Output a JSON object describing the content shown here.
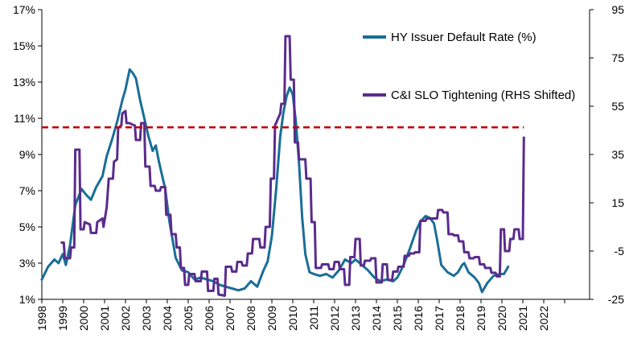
{
  "chart_data": {
    "type": "line",
    "title": "",
    "xlabel": "",
    "ylabel": "",
    "x_tick_labels": [
      "1998",
      "1999",
      "2000",
      "2001",
      "2002",
      "2003",
      "2004",
      "2005",
      "2006",
      "2007",
      "2008",
      "2009",
      "2010",
      "2011",
      "2012",
      "2013",
      "2014",
      "2015",
      "2016",
      "2017",
      "2018",
      "2019",
      "2020",
      "2021",
      "2022"
    ],
    "xlim": [
      1998,
      2023
    ],
    "y_left": {
      "ticks": [
        "1%",
        "3%",
        "5%",
        "7%",
        "9%",
        "11%",
        "13%",
        "15%",
        "17%"
      ],
      "range": [
        1,
        17
      ]
    },
    "y_right": {
      "ticks": [
        "-25",
        "-5",
        "15",
        "35",
        "55",
        "75",
        "95"
      ],
      "range": [
        -25,
        95
      ]
    },
    "grid": false,
    "legend_position": "top-right",
    "colors": {
      "series1": "#1a6e96",
      "series2": "#5b2c8c",
      "reference": "#c00000",
      "axis": "#000000"
    },
    "reference_line": {
      "axis": "left",
      "y": 10.5,
      "style": "dashed"
    },
    "series": [
      {
        "name": "HY Issuer Default Rate (%)",
        "axis": "left",
        "points": [
          [
            1998.0,
            2.1
          ],
          [
            1998.3,
            2.8
          ],
          [
            1998.6,
            3.2
          ],
          [
            1998.8,
            3.0
          ],
          [
            1999.0,
            3.5
          ],
          [
            1999.15,
            2.9
          ],
          [
            1999.35,
            4.0
          ],
          [
            1999.6,
            6.2
          ],
          [
            1999.9,
            7.1
          ],
          [
            2000.1,
            6.8
          ],
          [
            2000.35,
            6.5
          ],
          [
            2000.6,
            7.2
          ],
          [
            2000.9,
            7.8
          ],
          [
            2001.1,
            8.9
          ],
          [
            2001.35,
            9.8
          ],
          [
            2001.6,
            10.8
          ],
          [
            2001.85,
            12.0
          ],
          [
            2002.0,
            12.6
          ],
          [
            2002.2,
            13.7
          ],
          [
            2002.35,
            13.5
          ],
          [
            2002.5,
            13.2
          ],
          [
            2002.7,
            12.0
          ],
          [
            2002.9,
            11.0
          ],
          [
            2003.1,
            10.0
          ],
          [
            2003.3,
            9.2
          ],
          [
            2003.45,
            9.5
          ],
          [
            2003.6,
            8.6
          ],
          [
            2003.9,
            7.1
          ],
          [
            2004.1,
            5.3
          ],
          [
            2004.4,
            3.3
          ],
          [
            2004.7,
            2.6
          ],
          [
            2005.0,
            2.5
          ],
          [
            2005.3,
            2.1
          ],
          [
            2005.6,
            2.2
          ],
          [
            2005.9,
            2.1
          ],
          [
            2006.2,
            2.0
          ],
          [
            2006.5,
            1.8
          ],
          [
            2006.8,
            1.7
          ],
          [
            2007.1,
            1.6
          ],
          [
            2007.4,
            1.5
          ],
          [
            2007.7,
            1.6
          ],
          [
            2008.0,
            2.0
          ],
          [
            2008.3,
            1.7
          ],
          [
            2008.6,
            2.6
          ],
          [
            2008.8,
            3.1
          ],
          [
            2009.0,
            4.5
          ],
          [
            2009.2,
            7.0
          ],
          [
            2009.4,
            10.0
          ],
          [
            2009.55,
            11.3
          ],
          [
            2009.7,
            12.2
          ],
          [
            2009.85,
            12.7
          ],
          [
            2010.0,
            12.3
          ],
          [
            2010.15,
            10.8
          ],
          [
            2010.3,
            8.5
          ],
          [
            2010.45,
            5.5
          ],
          [
            2010.6,
            3.5
          ],
          [
            2010.8,
            2.5
          ],
          [
            2011.0,
            2.4
          ],
          [
            2011.3,
            2.3
          ],
          [
            2011.6,
            2.4
          ],
          [
            2011.9,
            2.2
          ],
          [
            2012.2,
            2.6
          ],
          [
            2012.5,
            3.2
          ],
          [
            2012.8,
            3.0
          ],
          [
            2013.0,
            3.2
          ],
          [
            2013.3,
            2.9
          ],
          [
            2013.6,
            2.6
          ],
          [
            2013.9,
            2.2
          ],
          [
            2014.2,
            2.0
          ],
          [
            2014.5,
            2.1
          ],
          [
            2014.8,
            2.0
          ],
          [
            2015.0,
            2.2
          ],
          [
            2015.3,
            2.9
          ],
          [
            2015.6,
            3.8
          ],
          [
            2015.9,
            4.8
          ],
          [
            2016.1,
            5.3
          ],
          [
            2016.35,
            5.6
          ],
          [
            2016.55,
            5.5
          ],
          [
            2016.75,
            5.2
          ],
          [
            2016.9,
            4.3
          ],
          [
            2017.1,
            2.9
          ],
          [
            2017.4,
            2.5
          ],
          [
            2017.7,
            2.3
          ],
          [
            2017.9,
            2.5
          ],
          [
            2018.1,
            2.9
          ],
          [
            2018.2,
            3.0
          ],
          [
            2018.4,
            2.5
          ],
          [
            2018.7,
            2.2
          ],
          [
            2018.9,
            1.9
          ],
          [
            2019.05,
            1.4
          ],
          [
            2019.3,
            1.9
          ],
          [
            2019.6,
            2.3
          ],
          [
            2019.9,
            2.4
          ],
          [
            2020.1,
            2.4
          ],
          [
            2020.3,
            2.8
          ]
        ]
      },
      {
        "name": "C&I SLO Tightening (RHS Shifted)",
        "axis": "right",
        "points": [
          [
            1998.95,
            -1.5
          ],
          [
            1999.05,
            -1.5
          ],
          [
            1999.1,
            -8.0
          ],
          [
            1999.35,
            -8.0
          ],
          [
            1999.4,
            -3.5
          ],
          [
            1999.55,
            -3.5
          ],
          [
            1999.6,
            37.0
          ],
          [
            1999.8,
            37.0
          ],
          [
            1999.85,
            4.0
          ],
          [
            2000.0,
            4.0
          ],
          [
            2000.05,
            7.0
          ],
          [
            2000.3,
            6.0
          ],
          [
            2000.35,
            2.5
          ],
          [
            2000.6,
            2.5
          ],
          [
            2000.65,
            7.0
          ],
          [
            2000.9,
            8.5
          ],
          [
            2000.95,
            5.0
          ],
          [
            2001.1,
            13.0
          ],
          [
            2001.2,
            25.0
          ],
          [
            2001.4,
            25.0
          ],
          [
            2001.45,
            32.0
          ],
          [
            2001.6,
            33.0
          ],
          [
            2001.65,
            46.0
          ],
          [
            2001.8,
            47.0
          ],
          [
            2001.85,
            52.0
          ],
          [
            2002.0,
            53.0
          ],
          [
            2002.05,
            48.0
          ],
          [
            2002.2,
            48.0
          ],
          [
            2002.3,
            47.5
          ],
          [
            2002.45,
            47.0
          ],
          [
            2002.5,
            41.0
          ],
          [
            2002.7,
            41.0
          ],
          [
            2002.75,
            48.0
          ],
          [
            2002.9,
            48.0
          ],
          [
            2002.95,
            30.0
          ],
          [
            2003.15,
            30.0
          ],
          [
            2003.2,
            22.0
          ],
          [
            2003.4,
            22.0
          ],
          [
            2003.45,
            20.0
          ],
          [
            2003.65,
            20.0
          ],
          [
            2003.7,
            21.5
          ],
          [
            2003.9,
            21.5
          ],
          [
            2003.95,
            10.0
          ],
          [
            2004.15,
            10.0
          ],
          [
            2004.2,
            2.0
          ],
          [
            2004.4,
            2.0
          ],
          [
            2004.45,
            -3.5
          ],
          [
            2004.6,
            -3.5
          ],
          [
            2004.65,
            -12.0
          ],
          [
            2004.8,
            -12.0
          ],
          [
            2004.85,
            -19.0
          ],
          [
            2005.0,
            -19.0
          ],
          [
            2005.05,
            -14.5
          ],
          [
            2005.3,
            -14.5
          ],
          [
            2005.35,
            -17.5
          ],
          [
            2005.6,
            -17.5
          ],
          [
            2005.65,
            -13.5
          ],
          [
            2005.9,
            -13.5
          ],
          [
            2005.95,
            -21.5
          ],
          [
            2006.2,
            -21.5
          ],
          [
            2006.25,
            -16.5
          ],
          [
            2006.4,
            -16.5
          ],
          [
            2006.45,
            -23.0
          ],
          [
            2006.75,
            -23.5
          ],
          [
            2006.8,
            -11.5
          ],
          [
            2007.05,
            -11.5
          ],
          [
            2007.1,
            -13.5
          ],
          [
            2007.3,
            -13.5
          ],
          [
            2007.35,
            -9.5
          ],
          [
            2007.55,
            -9.5
          ],
          [
            2007.6,
            -11.0
          ],
          [
            2007.8,
            -11.0
          ],
          [
            2007.85,
            -6.0
          ],
          [
            2008.05,
            -6.0
          ],
          [
            2008.1,
            0.0
          ],
          [
            2008.4,
            0.0
          ],
          [
            2008.45,
            -3.5
          ],
          [
            2008.65,
            -3.5
          ],
          [
            2008.7,
            5.0
          ],
          [
            2008.9,
            5.0
          ],
          [
            2008.95,
            25.0
          ],
          [
            2009.1,
            25.0
          ],
          [
            2009.15,
            47.0
          ],
          [
            2009.4,
            52.0
          ],
          [
            2009.45,
            56.0
          ],
          [
            2009.6,
            56.0
          ],
          [
            2009.65,
            84.0
          ],
          [
            2009.85,
            84.0
          ],
          [
            2009.9,
            66.0
          ],
          [
            2010.05,
            66.0
          ],
          [
            2010.1,
            40.0
          ],
          [
            2010.25,
            40.0
          ],
          [
            2010.3,
            33.0
          ],
          [
            2010.6,
            33.0
          ],
          [
            2010.65,
            25.0
          ],
          [
            2010.85,
            25.0
          ],
          [
            2010.9,
            7.0
          ],
          [
            2011.05,
            7.0
          ],
          [
            2011.1,
            -12.0
          ],
          [
            2011.35,
            -12.0
          ],
          [
            2011.4,
            -10.5
          ],
          [
            2011.7,
            -10.5
          ],
          [
            2011.75,
            -12.5
          ],
          [
            2011.95,
            -12.5
          ],
          [
            2012.0,
            -9.5
          ],
          [
            2012.2,
            -9.5
          ],
          [
            2012.25,
            -12.5
          ],
          [
            2012.45,
            -12.5
          ],
          [
            2012.5,
            -19.0
          ],
          [
            2012.7,
            -19.0
          ],
          [
            2012.75,
            -7.5
          ],
          [
            2012.95,
            -7.5
          ],
          [
            2013.0,
            0.0
          ],
          [
            2013.2,
            0.0
          ],
          [
            2013.25,
            -11.0
          ],
          [
            2013.4,
            -11.0
          ],
          [
            2013.45,
            -9.0
          ],
          [
            2013.7,
            -9.0
          ],
          [
            2013.75,
            -8.0
          ],
          [
            2013.95,
            -8.0
          ],
          [
            2014.0,
            -18.0
          ],
          [
            2014.25,
            -18.0
          ],
          [
            2014.3,
            -10.5
          ],
          [
            2014.5,
            -10.5
          ],
          [
            2014.55,
            -17.0
          ],
          [
            2014.75,
            -17.0
          ],
          [
            2014.8,
            -13.5
          ],
          [
            2015.0,
            -13.5
          ],
          [
            2015.05,
            -11.5
          ],
          [
            2015.3,
            -11.5
          ],
          [
            2015.35,
            -7.0
          ],
          [
            2015.55,
            -7.0
          ],
          [
            2015.6,
            -6.0
          ],
          [
            2015.8,
            -6.0
          ],
          [
            2015.85,
            -5.5
          ],
          [
            2016.05,
            -5.5
          ],
          [
            2016.1,
            7.5
          ],
          [
            2016.35,
            7.5
          ],
          [
            2016.4,
            8.5
          ],
          [
            2016.65,
            8.5
          ],
          [
            2016.7,
            8.5
          ],
          [
            2016.9,
            8.5
          ],
          [
            2016.95,
            12.0
          ],
          [
            2017.15,
            12.0
          ],
          [
            2017.2,
            11.0
          ],
          [
            2017.4,
            11.0
          ],
          [
            2017.45,
            2.0
          ],
          [
            2017.65,
            2.0
          ],
          [
            2017.7,
            1.5
          ],
          [
            2017.9,
            1.5
          ],
          [
            2017.95,
            -1.0
          ],
          [
            2018.15,
            -1.0
          ],
          [
            2018.2,
            -5.5
          ],
          [
            2018.4,
            -5.5
          ],
          [
            2018.45,
            -8.0
          ],
          [
            2018.65,
            -8.0
          ],
          [
            2018.7,
            -7.5
          ],
          [
            2018.9,
            -7.5
          ],
          [
            2018.95,
            -10.5
          ],
          [
            2019.15,
            -10.5
          ],
          [
            2019.2,
            -12.0
          ],
          [
            2019.45,
            -12.0
          ],
          [
            2019.5,
            -14.0
          ],
          [
            2019.7,
            -14.0
          ],
          [
            2019.75,
            -15.5
          ],
          [
            2019.9,
            -15.5
          ],
          [
            2019.95,
            4.0
          ],
          [
            2020.1,
            4.0
          ],
          [
            2020.15,
            -5.0
          ],
          [
            2020.35,
            -5.0
          ],
          [
            2020.4,
            0.0
          ],
          [
            2020.55,
            0.0
          ],
          [
            2020.6,
            4.0
          ],
          [
            2020.8,
            4.0
          ],
          [
            2020.85,
            0.0
          ],
          [
            2021.0,
            0.0
          ],
          [
            2021.05,
            42.0
          ]
        ]
      }
    ]
  }
}
